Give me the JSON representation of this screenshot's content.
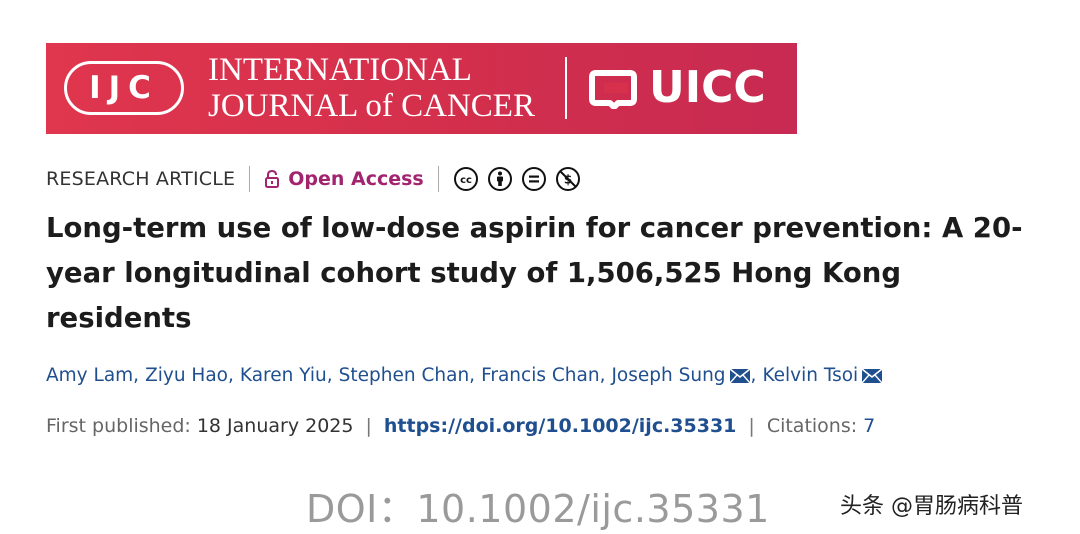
{
  "banner": {
    "logo_abbrev": "IJC",
    "journal_name_line1": "INTERNATIONAL",
    "journal_name_line2": "JOURNAL of CANCER",
    "partner_logo_text": "UICC",
    "colors": {
      "background": "#d6304d",
      "foreground": "#ffffff"
    }
  },
  "meta": {
    "article_type": "RESEARCH ARTICLE",
    "open_access_label": "Open Access",
    "license_icons": [
      "cc-icon",
      "by-icon",
      "nd-icon",
      "nc-icon"
    ],
    "colors": {
      "open_access": "#a3246e"
    }
  },
  "article": {
    "title": "Long-term use of low-dose aspirin for cancer prevention: A 20-year longitudinal cohort study of 1,506,525 Hong Kong residents",
    "authors": [
      {
        "name": "Amy Lam",
        "corresponding": false
      },
      {
        "name": "Ziyu Hao",
        "corresponding": false
      },
      {
        "name": "Karen Yiu",
        "corresponding": false
      },
      {
        "name": "Stephen Chan",
        "corresponding": false
      },
      {
        "name": "Francis Chan",
        "corresponding": false
      },
      {
        "name": "Joseph Sung",
        "corresponding": true
      },
      {
        "name": "Kelvin Tsoi",
        "corresponding": true
      }
    ],
    "first_published_label": "First published:",
    "first_published_date": "18 January 2025",
    "doi_link": "https://doi.org/10.1002/ijc.35331",
    "citations_label": "Citations:",
    "citations_count": "7",
    "colors": {
      "link": "#1f4f8f"
    }
  },
  "caption": {
    "doi_text": "DOI：10.1002/ijc.35331"
  },
  "watermark": {
    "text": "头条 @胃肠病科普"
  }
}
